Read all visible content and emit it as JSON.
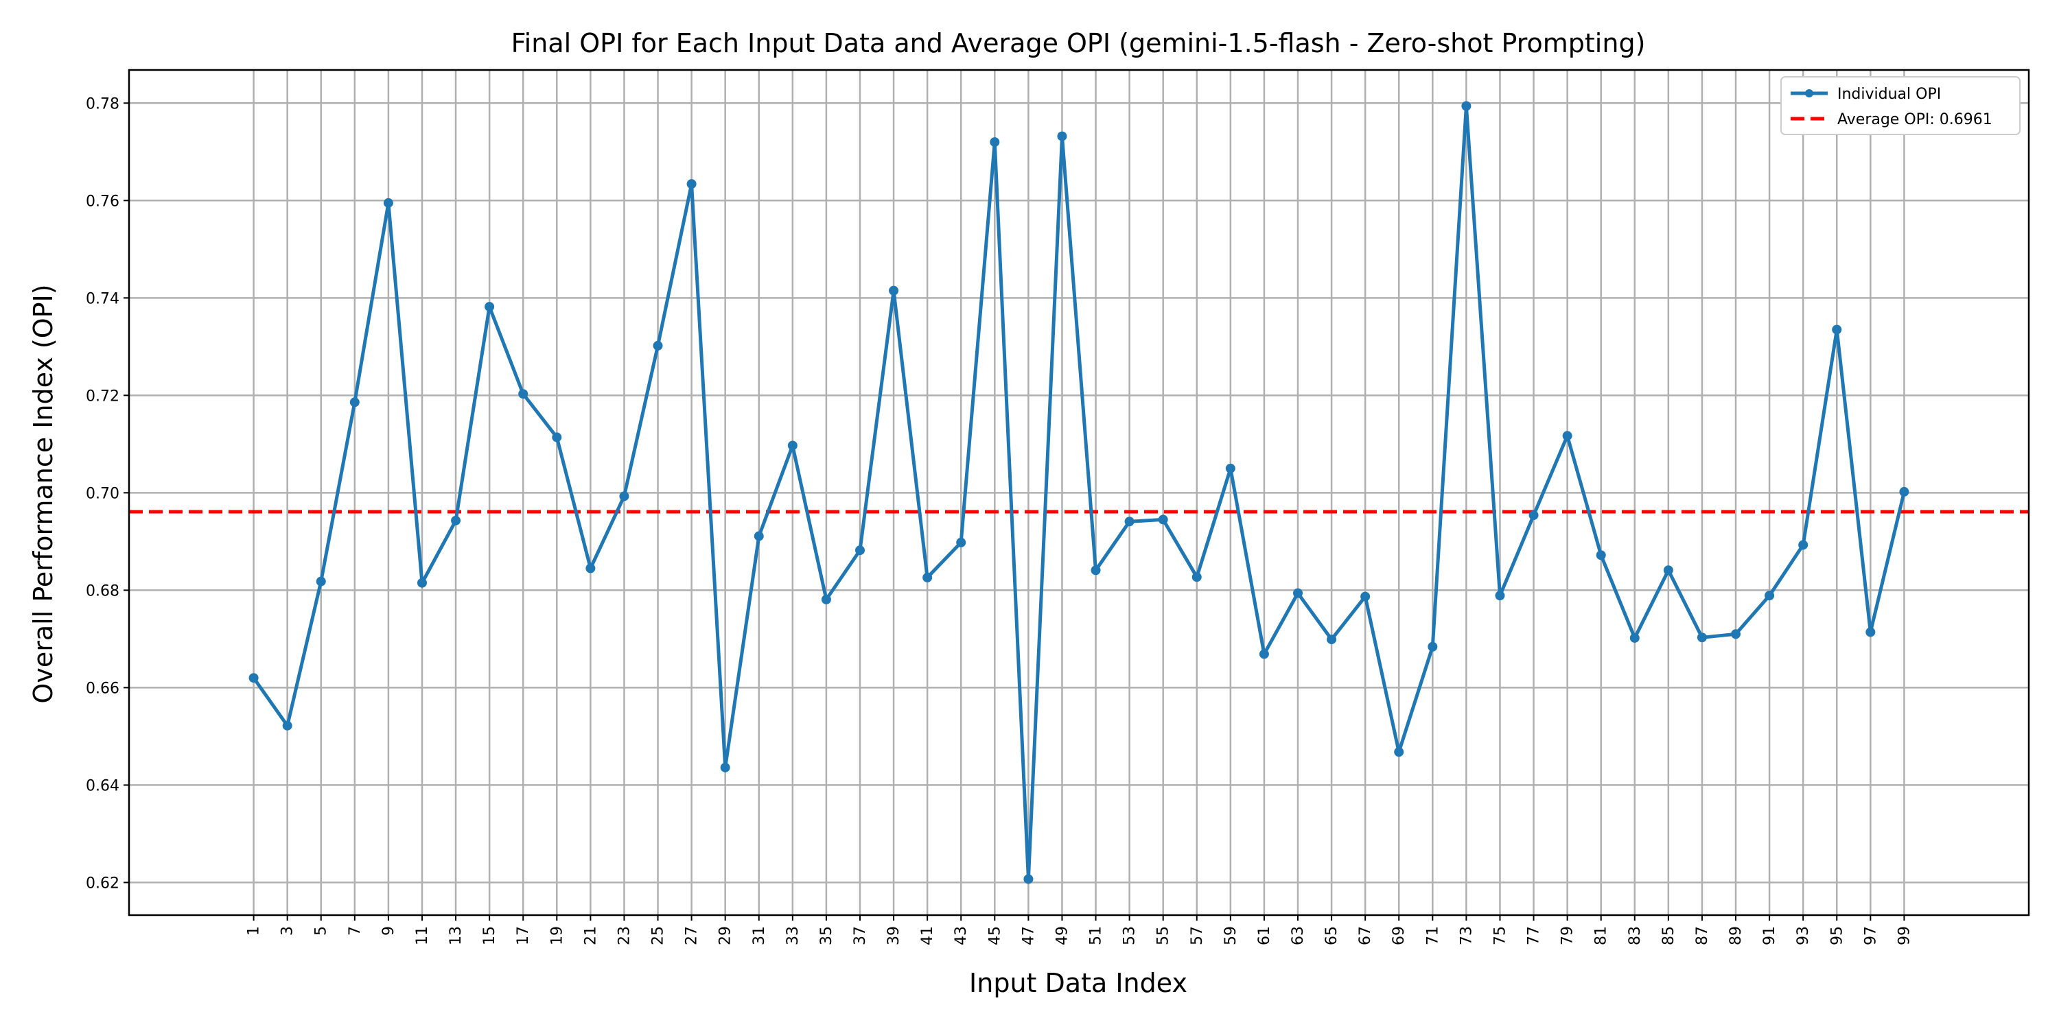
{
  "chart_data": {
    "type": "line",
    "title": "Final OPI for Each Input Data and Average OPI (gemini-1.5-flash - Zero-shot Prompting)",
    "xlabel": "Input Data Index",
    "ylabel": "Overall Performance Index (OPI)",
    "x": [
      1,
      3,
      5,
      7,
      9,
      11,
      13,
      15,
      17,
      19,
      21,
      23,
      25,
      27,
      29,
      31,
      33,
      35,
      37,
      39,
      41,
      43,
      45,
      47,
      49,
      51,
      53,
      55,
      57,
      59,
      61,
      63,
      65,
      67,
      69,
      71,
      73,
      75,
      77,
      79,
      81,
      83,
      85,
      87,
      89,
      91,
      93,
      95,
      97,
      99
    ],
    "series": [
      {
        "name": "Individual OPI",
        "color": "#1f77b4",
        "values": [
          0.662,
          0.6522,
          0.6818,
          0.7186,
          0.7595,
          0.6815,
          0.6943,
          0.7382,
          0.7203,
          0.7114,
          0.6845,
          0.6993,
          0.7302,
          0.7634,
          0.6436,
          0.6911,
          0.7097,
          0.6781,
          0.6882,
          0.7415,
          0.6826,
          0.6898,
          0.772,
          0.6207,
          0.7732,
          0.6841,
          0.6941,
          0.6945,
          0.6827,
          0.705,
          0.6669,
          0.6794,
          0.6699,
          0.6787,
          0.6468,
          0.6684,
          0.7794,
          0.6789,
          0.6954,
          0.7117,
          0.6872,
          0.6702,
          0.6841,
          0.6703,
          0.671,
          0.6789,
          0.6893,
          0.7335,
          0.6714,
          0.7002
        ]
      }
    ],
    "average": {
      "label": "Average OPI: 0.6961",
      "value": 0.6961,
      "color": "#ff0000",
      "style": "dashed"
    },
    "xticks": [
      1,
      3,
      5,
      7,
      9,
      11,
      13,
      15,
      17,
      19,
      21,
      23,
      25,
      27,
      29,
      31,
      33,
      35,
      37,
      39,
      41,
      43,
      45,
      47,
      49,
      51,
      53,
      55,
      57,
      59,
      61,
      63,
      65,
      67,
      69,
      71,
      73,
      75,
      77,
      79,
      81,
      83,
      85,
      87,
      89,
      91,
      93,
      95,
      97,
      99
    ],
    "yticks": [
      "0.62",
      "0.64",
      "0.66",
      "0.68",
      "0.70",
      "0.72",
      "0.74",
      "0.76",
      "0.78"
    ],
    "xlim": [
      -6.4,
      106.4
    ],
    "ylim": [
      0.6133,
      0.7868
    ],
    "grid": true,
    "legend_position": "top-right",
    "legend_entries": [
      "Individual OPI",
      "Average OPI: 0.6961"
    ]
  }
}
